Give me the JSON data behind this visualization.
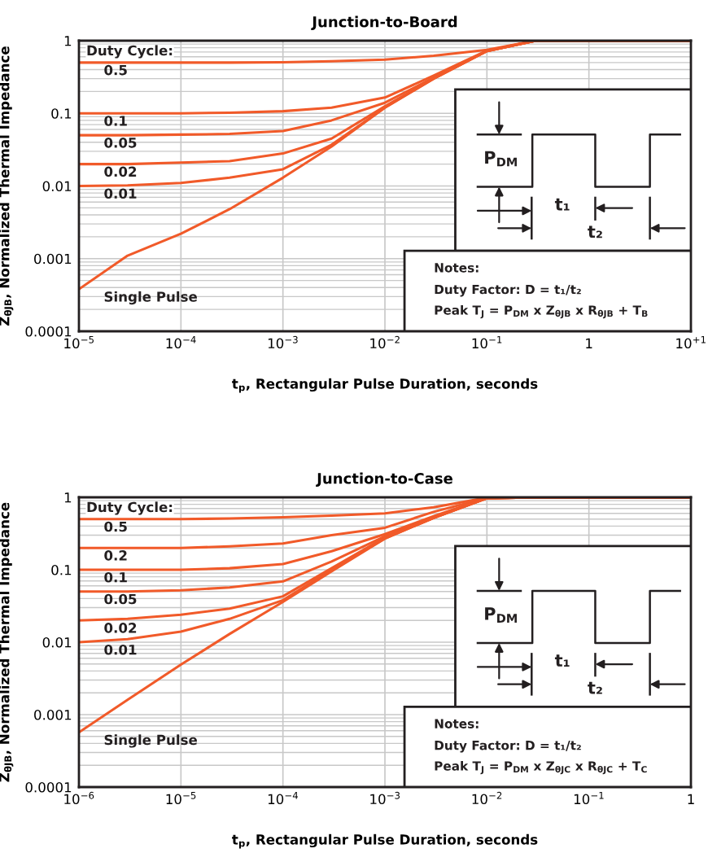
{
  "chart_data": [
    {
      "type": "line",
      "title": "Junction-to-Board",
      "xlabel": "t$_{p}$, Rectangular Pulse Duration, seconds",
      "ylabel": "Z$_{θJB}$, Normalized Thermal Impedance",
      "log": "xy",
      "grid": true,
      "x": [
        1e-05,
        3e-05,
        0.0001,
        0.0003,
        0.001,
        0.003,
        0.01,
        0.03,
        0.1,
        0.3,
        1,
        10
      ],
      "xlim": [
        1e-05,
        10
      ],
      "ylim": [
        0.0001,
        1
      ],
      "xticks": [
        {
          "value": 1e-05,
          "label": "10$^{−5}$"
        },
        {
          "value": 0.0001,
          "label": "10$^{−4}$"
        },
        {
          "value": 0.001,
          "label": "10$^{−3}$"
        },
        {
          "value": 0.01,
          "label": "10$^{−2}$"
        },
        {
          "value": 0.1,
          "label": "10$^{−1}$"
        },
        1,
        {
          "value": 10,
          "label": "10$^{+1}$"
        }
      ],
      "yticks": [
        0.0001,
        0.001,
        0.01,
        0.1,
        1
      ],
      "series": [
        {
          "name": "0.5",
          "color": "#f15a29",
          "values": [
            0.5,
            0.5,
            0.5,
            0.5,
            0.505,
            0.52,
            0.55,
            0.62,
            0.75,
            1,
            1,
            1
          ]
        },
        {
          "name": "0.1",
          "color": "#f15a29",
          "values": [
            0.1,
            0.1,
            0.1,
            0.102,
            0.107,
            0.12,
            0.165,
            0.33,
            0.73,
            1,
            1,
            1
          ]
        },
        {
          "name": "0.05",
          "color": "#f15a29",
          "values": [
            0.05,
            0.05,
            0.051,
            0.052,
            0.057,
            0.08,
            0.14,
            0.31,
            0.72,
            1,
            1,
            1
          ]
        },
        {
          "name": "0.02",
          "color": "#f15a29",
          "values": [
            0.02,
            0.02,
            0.021,
            0.022,
            0.028,
            0.045,
            0.125,
            0.3,
            0.72,
            1,
            1,
            1
          ]
        },
        {
          "name": "0.01",
          "color": "#f15a29",
          "values": [
            0.01,
            0.0102,
            0.011,
            0.013,
            0.017,
            0.037,
            0.12,
            0.3,
            0.72,
            1,
            1,
            1
          ]
        },
        {
          "name": "Single Pulse",
          "color": "#f15a29",
          "values": [
            0.00038,
            0.0011,
            0.0022,
            0.0048,
            0.013,
            0.035,
            0.12,
            0.3,
            0.72,
            1,
            1,
            1
          ]
        }
      ],
      "annotations": [
        "Duty Cycle:",
        "P$_{DM}$",
        "t₁",
        "t₂",
        "Notes:",
        "Duty Factor: D = t₁/t₂",
        "Peak T$_{J}$ = P$_{DM}$ x Z$_{θJB}$ x R$_{θJB}$ + T$_{B}$"
      ]
    },
    {
      "type": "line",
      "title": "Junction-to-Case",
      "xlabel": "t$_{p}$, Rectangular Pulse Duration, seconds",
      "ylabel": "Z$_{θJB}$, Normalized Thermal Impedance",
      "log": "xy",
      "grid": true,
      "x": [
        1e-06,
        3e-06,
        1e-05,
        3e-05,
        0.0001,
        0.0003,
        0.001,
        0.003,
        0.01,
        0.03,
        1
      ],
      "xlim": [
        1e-06,
        1
      ],
      "ylim": [
        0.0001,
        1
      ],
      "xticks": [
        {
          "value": 1e-06,
          "label": "10$^{−6}$"
        },
        {
          "value": 1e-05,
          "label": "10$^{−5}$"
        },
        {
          "value": 0.0001,
          "label": "10$^{−4}$"
        },
        {
          "value": 0.001,
          "label": "10$^{−3}$"
        },
        {
          "value": 0.01,
          "label": "10$^{−2}$"
        },
        {
          "value": 0.1,
          "label": "10$^{−1}$"
        },
        1
      ],
      "yticks": [
        0.0001,
        0.001,
        0.01,
        0.1,
        1
      ],
      "series": [
        {
          "name": "0.5",
          "color": "#f15a29",
          "values": [
            0.5,
            0.5,
            0.5,
            0.51,
            0.53,
            0.56,
            0.6,
            0.73,
            0.99,
            1,
            1
          ]
        },
        {
          "name": "0.2",
          "color": "#f15a29",
          "values": [
            0.2,
            0.2,
            0.2,
            0.21,
            0.23,
            0.3,
            0.38,
            0.63,
            0.98,
            1,
            1
          ]
        },
        {
          "name": "0.1",
          "color": "#f15a29",
          "values": [
            0.1,
            0.1,
            0.1,
            0.105,
            0.12,
            0.18,
            0.31,
            0.55,
            0.98,
            1,
            1
          ]
        },
        {
          "name": "0.05",
          "color": "#f15a29",
          "values": [
            0.05,
            0.05,
            0.052,
            0.057,
            0.069,
            0.13,
            0.29,
            0.53,
            0.97,
            1,
            1
          ]
        },
        {
          "name": "0.02",
          "color": "#f15a29",
          "values": [
            0.02,
            0.021,
            0.024,
            0.029,
            0.043,
            0.105,
            0.28,
            0.52,
            0.97,
            1,
            1
          ]
        },
        {
          "name": "0.01",
          "color": "#f15a29",
          "values": [
            0.01,
            0.011,
            0.014,
            0.021,
            0.038,
            0.1,
            0.27,
            0.52,
            0.97,
            1,
            1
          ]
        },
        {
          "name": "Single Pulse",
          "color": "#f15a29",
          "values": [
            0.00057,
            0.0016,
            0.0049,
            0.013,
            0.036,
            0.095,
            0.27,
            0.52,
            0.97,
            1,
            1
          ]
        }
      ],
      "annotations": [
        "Duty Cycle:",
        "P$_{DM}$",
        "t₁",
        "t₂",
        "Notes:",
        "Duty Factor: D = t₁/t₂",
        "Peak T$_{J}$ = P$_{DM}$ x Z$_{θJC}$ x R$_{θJC}$ + T$_{C}$"
      ]
    }
  ]
}
